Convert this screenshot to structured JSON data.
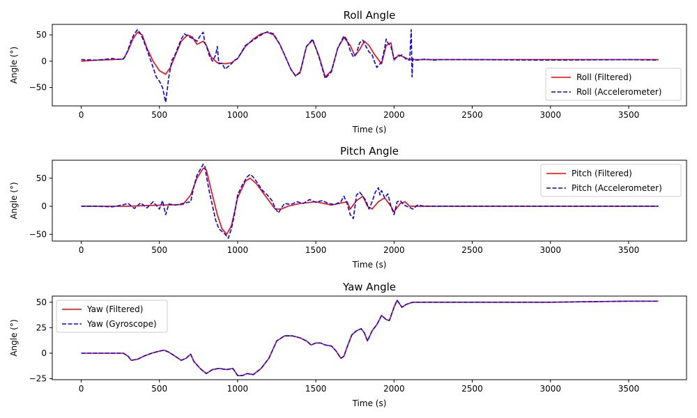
{
  "colors": {
    "filtered": "#ff0000",
    "sensor": "#0000ff",
    "axes": "#000000",
    "background": "#ffffff"
  },
  "chart_data": [
    {
      "type": "line",
      "title": "Roll Angle",
      "xlabel": "Time (s)",
      "ylabel": "Angle (°)",
      "xlim": [
        -185,
        3870
      ],
      "ylim": [
        -85,
        70
      ],
      "xticks": [
        0,
        500,
        1000,
        1500,
        2000,
        2500,
        3000,
        3500
      ],
      "yticks": [
        -50,
        0,
        50
      ],
      "legend_position": "lower-right",
      "grid": false,
      "series": [
        {
          "name": "Roll (Filtered)",
          "color": "#ff0000",
          "style": "solid",
          "x": [
            0,
            100,
            200,
            270,
            300,
            330,
            360,
            390,
            420,
            460,
            500,
            540,
            570,
            600,
            640,
            680,
            710,
            740,
            780,
            800,
            830,
            870,
            920,
            960,
            1000,
            1050,
            1100,
            1150,
            1190,
            1230,
            1270,
            1300,
            1340,
            1370,
            1400,
            1440,
            1480,
            1520,
            1560,
            1600,
            1640,
            1680,
            1720,
            1750,
            1780,
            1810,
            1840,
            1870,
            1900,
            1920,
            1950,
            1980,
            2000,
            2030,
            2060,
            2100,
            2150,
            2200,
            2300,
            2500,
            3000,
            3500,
            3690
          ],
          "y": [
            0,
            2,
            3,
            4,
            20,
            42,
            55,
            50,
            25,
            0,
            -18,
            -25,
            -12,
            10,
            38,
            50,
            46,
            32,
            38,
            30,
            8,
            -3,
            -5,
            -3,
            5,
            28,
            42,
            52,
            55,
            50,
            32,
            12,
            -15,
            -28,
            -20,
            28,
            40,
            10,
            -30,
            -18,
            25,
            45,
            30,
            10,
            22,
            38,
            30,
            15,
            3,
            -5,
            30,
            35,
            2,
            12,
            8,
            3,
            3,
            3,
            3,
            3,
            3,
            3,
            3
          ]
        },
        {
          "name": "Roll (Accelerometer)",
          "color": "#0000ff",
          "style": "dashed",
          "x": [
            0,
            100,
            200,
            260,
            280,
            300,
            320,
            340,
            360,
            380,
            400,
            420,
            440,
            460,
            480,
            500,
            520,
            540,
            560,
            580,
            600,
            620,
            640,
            660,
            680,
            700,
            720,
            740,
            760,
            780,
            790,
            800,
            820,
            840,
            860,
            870,
            880,
            900,
            920,
            940,
            960,
            980,
            1000,
            1020,
            1050,
            1100,
            1150,
            1190,
            1230,
            1270,
            1300,
            1340,
            1370,
            1400,
            1440,
            1480,
            1520,
            1560,
            1600,
            1640,
            1680,
            1700,
            1720,
            1740,
            1760,
            1780,
            1800,
            1820,
            1840,
            1860,
            1880,
            1890,
            1900,
            1920,
            1940,
            1950,
            1960,
            1980,
            2000,
            2020,
            2050,
            2080,
            2100,
            2110,
            2115,
            2120,
            2130,
            2150,
            2200,
            2250,
            2300,
            2500,
            3000,
            3500,
            3690
          ],
          "y": [
            3,
            2,
            5,
            3,
            8,
            22,
            40,
            52,
            60,
            52,
            38,
            22,
            5,
            -12,
            -30,
            -38,
            -50,
            -78,
            -30,
            2,
            12,
            28,
            42,
            52,
            48,
            45,
            42,
            38,
            48,
            55,
            35,
            30,
            10,
            0,
            12,
            28,
            -5,
            -4,
            -15,
            -10,
            -5,
            2,
            5,
            15,
            30,
            40,
            50,
            56,
            52,
            32,
            12,
            -15,
            -28,
            -22,
            28,
            42,
            8,
            -33,
            -20,
            25,
            48,
            40,
            20,
            8,
            15,
            35,
            40,
            28,
            18,
            12,
            -5,
            -12,
            -8,
            -2,
            25,
            42,
            35,
            28,
            5,
            8,
            12,
            3,
            2,
            60,
            -30,
            5,
            3,
            2,
            4,
            2,
            3,
            3,
            2,
            3,
            2
          ]
        }
      ]
    },
    {
      "type": "line",
      "title": "Pitch Angle",
      "xlabel": "Time (s)",
      "ylabel": "Angle (°)",
      "xlim": [
        -185,
        3870
      ],
      "ylim": [
        -62,
        82
      ],
      "xticks": [
        0,
        500,
        1000,
        1500,
        2000,
        2500,
        3000,
        3500
      ],
      "yticks": [
        -50,
        0,
        50
      ],
      "legend_position": "upper-right",
      "grid": false,
      "series": [
        {
          "name": "Pitch (Filtered)",
          "color": "#ff0000",
          "style": "solid",
          "x": [
            0,
            200,
            300,
            500,
            650,
            700,
            740,
            780,
            800,
            830,
            870,
            900,
            930,
            960,
            1000,
            1050,
            1080,
            1120,
            1160,
            1200,
            1240,
            1280,
            1320,
            1400,
            1500,
            1600,
            1650,
            1700,
            1720,
            1760,
            1800,
            1830,
            1860,
            1900,
            1940,
            1980,
            2000,
            2040,
            2070,
            2100,
            2200,
            2500,
            3000,
            3500,
            3690
          ],
          "y": [
            0,
            0,
            0,
            2,
            3,
            20,
            50,
            68,
            65,
            30,
            -15,
            -40,
            -50,
            -35,
            15,
            45,
            50,
            40,
            25,
            10,
            -5,
            -5,
            0,
            5,
            8,
            2,
            5,
            8,
            -5,
            10,
            18,
            0,
            -5,
            8,
            15,
            0,
            -10,
            5,
            8,
            0,
            0,
            0,
            0,
            0,
            0
          ]
        },
        {
          "name": "Pitch (Accelerometer)",
          "color": "#0000ff",
          "style": "dashed",
          "x": [
            0,
            100,
            200,
            260,
            300,
            340,
            380,
            420,
            460,
            500,
            520,
            540,
            560,
            600,
            650,
            700,
            720,
            740,
            760,
            780,
            790,
            800,
            820,
            840,
            860,
            880,
            900,
            920,
            940,
            960,
            980,
            1000,
            1030,
            1060,
            1080,
            1100,
            1130,
            1160,
            1190,
            1220,
            1240,
            1260,
            1280,
            1300,
            1340,
            1380,
            1420,
            1460,
            1500,
            1540,
            1580,
            1620,
            1660,
            1680,
            1700,
            1720,
            1740,
            1760,
            1780,
            1800,
            1820,
            1840,
            1860,
            1880,
            1900,
            1910,
            1920,
            1940,
            1960,
            1980,
            2000,
            2020,
            2040,
            2060,
            2080,
            2100,
            2120,
            2150,
            2200,
            2500,
            3000,
            3500,
            3690
          ],
          "y": [
            0,
            0,
            -1,
            2,
            5,
            -4,
            6,
            -3,
            8,
            -5,
            10,
            -15,
            4,
            2,
            5,
            8,
            35,
            55,
            65,
            75,
            72,
            55,
            25,
            0,
            -25,
            -40,
            -45,
            -50,
            -57,
            -40,
            -15,
            20,
            38,
            52,
            57,
            52,
            40,
            28,
            20,
            10,
            -3,
            -12,
            -3,
            5,
            3,
            8,
            5,
            12,
            7,
            10,
            5,
            3,
            8,
            18,
            5,
            -15,
            -22,
            20,
            25,
            18,
            10,
            -5,
            8,
            25,
            33,
            20,
            28,
            15,
            22,
            0,
            -15,
            8,
            10,
            3,
            0,
            -2,
            -5,
            2,
            0,
            0,
            0,
            0,
            0
          ]
        }
      ]
    },
    {
      "type": "line",
      "title": "Yaw Angle",
      "xlabel": "Time (s)",
      "ylabel": "Angle (°)",
      "xlim": [
        -185,
        3870
      ],
      "ylim": [
        -26,
        56
      ],
      "xticks": [
        0,
        500,
        1000,
        1500,
        2000,
        2500,
        3000,
        3500
      ],
      "yticks": [
        -25,
        0,
        25,
        50
      ],
      "legend_position": "upper-left",
      "grid": false,
      "series": [
        {
          "name": "Yaw (Filtered)",
          "color": "#ff0000",
          "style": "solid",
          "x": [
            0,
            100,
            200,
            270,
            300,
            320,
            360,
            400,
            450,
            500,
            530,
            560,
            600,
            640,
            670,
            700,
            720,
            760,
            800,
            840,
            880,
            930,
            970,
            1000,
            1030,
            1060,
            1100,
            1150,
            1200,
            1250,
            1300,
            1350,
            1400,
            1440,
            1470,
            1500,
            1530,
            1560,
            1600,
            1630,
            1660,
            1680,
            1700,
            1730,
            1760,
            1790,
            1810,
            1830,
            1860,
            1890,
            1920,
            1950,
            1970,
            2000,
            2020,
            2050,
            2080,
            2120,
            2200,
            2500,
            3000,
            3500,
            3690
          ],
          "y": [
            0,
            0,
            0,
            0,
            -3,
            -7,
            -6,
            -3,
            0,
            2,
            3,
            1,
            -3,
            -7,
            -5,
            -1,
            -8,
            -15,
            -20,
            -16,
            -15,
            -16,
            -15,
            -22,
            -22,
            -20,
            -21,
            -15,
            -5,
            12,
            17,
            17,
            15,
            12,
            8,
            10,
            10,
            8,
            7,
            2,
            -5,
            -3,
            6,
            18,
            22,
            24,
            20,
            12,
            22,
            28,
            37,
            33,
            32,
            45,
            52,
            45,
            48,
            50,
            50,
            50,
            50,
            51,
            51
          ]
        },
        {
          "name": "Yaw (Gyroscope)",
          "color": "#0000ff",
          "style": "dashed",
          "x": [
            0,
            100,
            200,
            270,
            300,
            320,
            360,
            400,
            450,
            500,
            530,
            560,
            600,
            640,
            670,
            700,
            720,
            760,
            800,
            840,
            880,
            930,
            970,
            1000,
            1030,
            1060,
            1100,
            1150,
            1200,
            1250,
            1300,
            1350,
            1400,
            1440,
            1470,
            1500,
            1530,
            1560,
            1600,
            1630,
            1660,
            1680,
            1700,
            1730,
            1760,
            1790,
            1810,
            1830,
            1860,
            1890,
            1920,
            1950,
            1970,
            2000,
            2020,
            2050,
            2080,
            2120,
            2200,
            2500,
            3000,
            3500,
            3690
          ],
          "y": [
            0,
            0,
            0,
            0,
            -3,
            -7,
            -6,
            -3,
            0,
            2,
            3,
            1,
            -3,
            -7,
            -5,
            -1,
            -8,
            -15,
            -20,
            -16,
            -15,
            -16,
            -15,
            -22,
            -22,
            -20,
            -21,
            -15,
            -5,
            12,
            17,
            17,
            15,
            12,
            8,
            10,
            10,
            8,
            7,
            2,
            -5,
            -3,
            6,
            18,
            22,
            24,
            20,
            12,
            22,
            28,
            37,
            33,
            32,
            45,
            52,
            45,
            48,
            50,
            50,
            50,
            50,
            51,
            51
          ]
        }
      ]
    }
  ]
}
